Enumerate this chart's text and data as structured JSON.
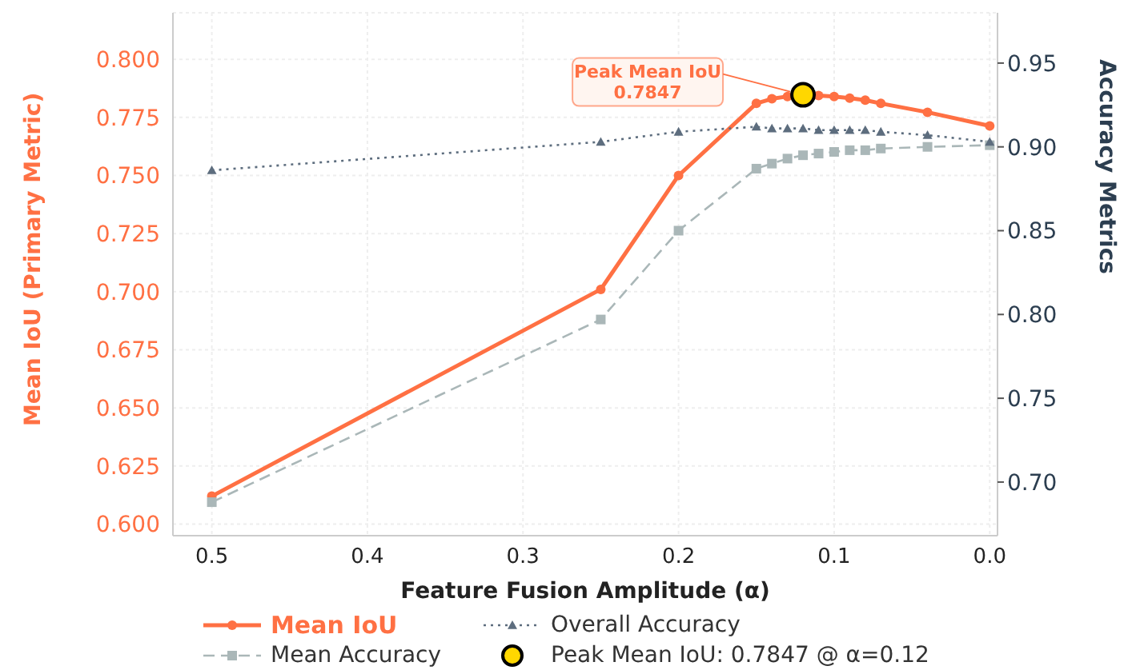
{
  "chart_data": {
    "type": "line",
    "xlabel": "Feature Fusion Amplitude (α)",
    "ylabel": "Mean IoU (Primary Metric)",
    "y2label": "Accuracy Metrics",
    "x": [
      0.5,
      0.25,
      0.2,
      0.15,
      0.14,
      0.13,
      0.12,
      0.11,
      0.1,
      0.09,
      0.08,
      0.07,
      0.04,
      0.0
    ],
    "series": [
      {
        "name": "Mean IoU",
        "color": "#ff7043",
        "marker": "circle",
        "line_style": "solid",
        "values": [
          0.612,
          0.701,
          0.75,
          0.781,
          0.783,
          0.784,
          0.7847,
          0.7844,
          0.784,
          0.7833,
          0.7824,
          0.781,
          0.7772,
          0.7713
        ]
      },
      {
        "name": "Mean Accuracy",
        "color": "#aab7b8",
        "marker": "square",
        "line_style": "dashed",
        "axis": "y2",
        "values": [
          0.688,
          0.797,
          0.85,
          0.887,
          0.89,
          0.893,
          0.895,
          0.896,
          0.897,
          0.898,
          0.898,
          0.899,
          0.9,
          0.901
        ]
      },
      {
        "name": "Overall Accuracy",
        "color": "#5d6d7e",
        "marker": "triangle",
        "line_style": "dotted",
        "axis": "y2",
        "values": [
          0.886,
          0.903,
          0.909,
          0.912,
          0.911,
          0.911,
          0.911,
          0.91,
          0.91,
          0.91,
          0.91,
          0.909,
          0.907,
          0.903
        ]
      },
      {
        "name": "Peak Mean IoU: 0.7847 @ α=0.12",
        "type": "scatter",
        "color": "#ffd700",
        "marker": "circle",
        "x": [
          0.12
        ],
        "values": [
          0.7847
        ]
      }
    ],
    "annotations": [
      {
        "text": "Peak Mean IoU\n0.7847",
        "x": 0.12,
        "y": 0.7847
      }
    ],
    "xlim": [
      0.525,
      -0.005
    ],
    "xticks": [
      0.5,
      0.4,
      0.3,
      0.2,
      0.1,
      {
        "value": 0,
        "label": "0.0"
      }
    ],
    "ylim": [
      0.595,
      0.82
    ],
    "yticks": [
      {
        "value": 0.6,
        "label": "0.600"
      },
      {
        "value": 0.625,
        "label": "0.625"
      },
      {
        "value": 0.65,
        "label": "0.650"
      },
      {
        "value": 0.675,
        "label": "0.675"
      },
      {
        "value": 0.7,
        "label": "0.700"
      },
      {
        "value": 0.725,
        "label": "0.725"
      },
      {
        "value": 0.75,
        "label": "0.750"
      },
      {
        "value": 0.775,
        "label": "0.775"
      },
      {
        "value": 0.8,
        "label": "0.800"
      }
    ],
    "y2lim": [
      0.668,
      0.98
    ],
    "y2ticks": [
      {
        "value": 0.7,
        "label": "0.70"
      },
      0.75,
      {
        "value": 0.8,
        "label": "0.80"
      },
      0.85,
      {
        "value": 0.9,
        "label": "0.90"
      },
      0.95
    ],
    "grid": true,
    "legend": "bottom"
  }
}
